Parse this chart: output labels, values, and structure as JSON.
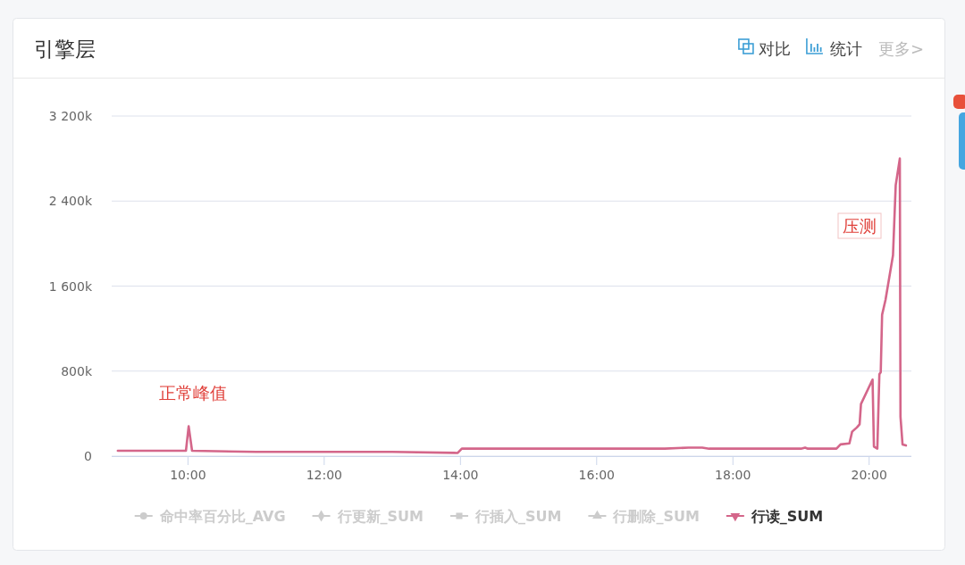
{
  "chart_data": {
    "type": "line",
    "title": "引擎层",
    "annotations": [
      "对比",
      "统计",
      "更多>",
      "正常峰值",
      "压测"
    ],
    "x": [
      8.97,
      9.5,
      9.97,
      10.01,
      10.06,
      11,
      12,
      13,
      13.96,
      14.02,
      15,
      16,
      17,
      17.35,
      17.55,
      17.65,
      19,
      19.06,
      19.1,
      19.52,
      19.58,
      19.71,
      19.75,
      19.82,
      19.86,
      19.88,
      20.05,
      20.07,
      20.12,
      20.15,
      20.17,
      20.19,
      20.24,
      20.35,
      20.39,
      20.45,
      20.46,
      20.49,
      20.54
    ],
    "xlim": [
      8.88,
      20.62
    ],
    "xticks": [
      {
        "value": 10,
        "label": "10:00"
      },
      {
        "value": 12,
        "label": "12:00"
      },
      {
        "value": 14,
        "label": "14:00"
      },
      {
        "value": 16,
        "label": "16:00"
      },
      {
        "value": 18,
        "label": "18:00"
      },
      {
        "value": 20,
        "label": "20:00"
      }
    ],
    "ylim": [
      0,
      3200000
    ],
    "yticks": [
      0,
      {
        "value": 800000,
        "label": "800k"
      },
      {
        "value": 1600000,
        "label": "1 600k"
      },
      {
        "value": 2400000,
        "label": "2 400k"
      },
      {
        "value": 3200000,
        "label": "3 200k"
      }
    ],
    "grid": "y",
    "legend": "bottom",
    "line_style": "solid",
    "series": [
      {
        "name": "命中率百分比_AVG",
        "color": "#cccccc",
        "values": [
          null,
          null,
          null,
          null,
          null,
          null,
          null,
          null,
          null,
          null,
          null,
          null,
          null,
          null,
          null,
          null,
          null,
          null,
          null,
          null,
          null,
          null,
          null,
          null,
          null,
          null,
          null,
          null,
          null,
          null,
          null,
          null,
          null,
          null,
          null,
          null,
          null,
          null,
          null
        ]
      },
      {
        "name": "行更新_SUM",
        "color": "#cccccc",
        "values": [
          null,
          null,
          null,
          null,
          null,
          null,
          null,
          null,
          null,
          null,
          null,
          null,
          null,
          null,
          null,
          null,
          null,
          null,
          null,
          null,
          null,
          null,
          null,
          null,
          null,
          null,
          null,
          null,
          null,
          null,
          null,
          null,
          null,
          null,
          null,
          null,
          null,
          null,
          null
        ]
      },
      {
        "name": "行插入_SUM",
        "color": "#cccccc",
        "values": [
          null,
          null,
          null,
          null,
          null,
          null,
          null,
          null,
          null,
          null,
          null,
          null,
          null,
          null,
          null,
          null,
          null,
          null,
          null,
          null,
          null,
          null,
          null,
          null,
          null,
          null,
          null,
          null,
          null,
          null,
          null,
          null,
          null,
          null,
          null,
          null,
          null,
          null,
          null
        ]
      },
      {
        "name": "行删除_SUM",
        "color": "#cccccc",
        "values": [
          null,
          null,
          null,
          null,
          null,
          null,
          null,
          null,
          null,
          null,
          null,
          null,
          null,
          null,
          null,
          null,
          null,
          null,
          null,
          null,
          null,
          null,
          null,
          null,
          null,
          null,
          null,
          null,
          null,
          null,
          null,
          null,
          null,
          null,
          null,
          null,
          null,
          null,
          null
        ]
      },
      {
        "name": "行读_SUM",
        "color": "#d4668a",
        "values": [
          50000,
          50000,
          50000,
          280000,
          50000,
          40000,
          40000,
          40000,
          30000,
          70000,
          70000,
          70000,
          70000,
          80000,
          80000,
          70000,
          70000,
          80000,
          70000,
          70000,
          110000,
          120000,
          230000,
          270000,
          300000,
          490000,
          720000,
          90000,
          70000,
          770000,
          790000,
          1330000,
          1470000,
          1890000,
          2550000,
          2800000,
          370000,
          110000,
          100000
        ]
      }
    ]
  }
}
